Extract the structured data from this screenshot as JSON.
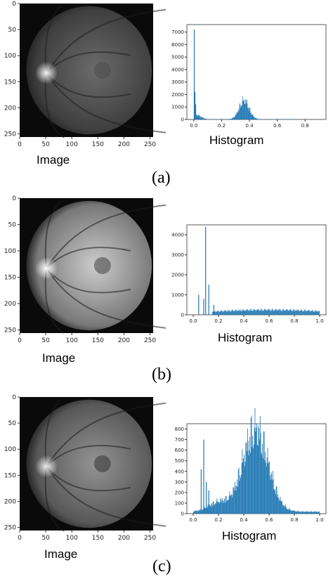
{
  "chart_data": [
    {
      "id": "a",
      "panel_label": "(a)",
      "image_caption": "Image",
      "histogram_caption": "Histogram",
      "image": {
        "type": "heatmap",
        "content": "fundus-grayscale-dark",
        "x_ticks": [
          "0",
          "50",
          "100",
          "150",
          "200",
          "250"
        ],
        "y_ticks": [
          "0",
          "50",
          "100",
          "150",
          "200",
          "250"
        ],
        "xlim": [
          0,
          256
        ],
        "ylim": [
          256,
          0
        ]
      },
      "histogram": {
        "type": "bar",
        "xlim": [
          -0.05,
          0.95
        ],
        "ylim": [
          0,
          7600
        ],
        "x_ticks": [
          "0.0",
          "0.2",
          "0.4",
          "0.6",
          "0.8"
        ],
        "x_tick_values": [
          0.0,
          0.2,
          0.4,
          0.6,
          0.8
        ],
        "y_ticks": [
          "0",
          "1000",
          "2000",
          "3000",
          "4000",
          "5000",
          "6000",
          "7000"
        ],
        "y_tick_values": [
          0,
          1000,
          2000,
          3000,
          4000,
          5000,
          6000,
          7000
        ],
        "spikes": [
          {
            "x": 0.0,
            "y": 7200
          },
          {
            "x": 0.005,
            "y": 2200
          },
          {
            "x": 0.01,
            "y": 1200
          }
        ],
        "bumps": [
          {
            "center": 0.36,
            "sigma": 0.035,
            "peak": 1550
          },
          {
            "center": 0.02,
            "sigma": 0.03,
            "peak": 350
          }
        ],
        "floor": 20,
        "range": [
          0.0,
          0.72
        ]
      },
      "image_brightness": {
        "fundus": 0.42,
        "disc": 0.95,
        "macula": 0.3
      }
    },
    {
      "id": "b",
      "panel_label": "(b)",
      "image_caption": "Image",
      "histogram_caption": "Histogram",
      "image": {
        "type": "heatmap",
        "content": "fundus-grayscale-bright",
        "x_ticks": [
          "0",
          "50",
          "100",
          "150",
          "200",
          "250"
        ],
        "y_ticks": [
          "0",
          "50",
          "100",
          "150",
          "200",
          "250"
        ],
        "xlim": [
          0,
          256
        ],
        "ylim": [
          256,
          0
        ]
      },
      "histogram": {
        "type": "bar",
        "xlim": [
          -0.05,
          1.05
        ],
        "ylim": [
          0,
          4500
        ],
        "x_ticks": [
          "0.0",
          "0.2",
          "0.4",
          "0.6",
          "0.8",
          "1.0"
        ],
        "x_tick_values": [
          0.0,
          0.2,
          0.4,
          0.6,
          0.8,
          1.0
        ],
        "y_ticks": [
          "0",
          "1000",
          "2000",
          "3000",
          "4000"
        ],
        "y_tick_values": [
          0,
          1000,
          2000,
          3000,
          4000
        ],
        "spikes": [
          {
            "x": 0.04,
            "y": 1000
          },
          {
            "x": 0.08,
            "y": 800
          },
          {
            "x": 0.095,
            "y": 4400
          },
          {
            "x": 0.12,
            "y": 1500
          },
          {
            "x": 0.16,
            "y": 500
          }
        ],
        "bumps": [
          {
            "center": 0.6,
            "sigma": 0.5,
            "peak": 260
          }
        ],
        "floor": 0,
        "range": [
          0.15,
          1.0
        ]
      },
      "image_brightness": {
        "fundus": 0.8,
        "disc": 1.0,
        "macula": 0.25
      }
    },
    {
      "id": "c",
      "panel_label": "(c)",
      "image_caption": "Image",
      "histogram_caption": "Histogram",
      "image": {
        "type": "heatmap",
        "content": "fundus-grayscale-medium",
        "x_ticks": [
          "0",
          "50",
          "100",
          "150",
          "200",
          "250"
        ],
        "y_ticks": [
          "0",
          "50",
          "100",
          "150",
          "200",
          "250"
        ],
        "xlim": [
          0,
          256
        ],
        "ylim": [
          256,
          0
        ]
      },
      "histogram": {
        "type": "bar",
        "xlim": [
          -0.05,
          1.05
        ],
        "ylim": [
          0,
          850
        ],
        "x_ticks": [
          "0.0",
          "0.2",
          "0.4",
          "0.6",
          "0.8",
          "1.0"
        ],
        "x_tick_values": [
          0.0,
          0.2,
          0.4,
          0.6,
          0.8,
          1.0
        ],
        "y_ticks": [
          "0",
          "100",
          "200",
          "300",
          "400",
          "500",
          "600",
          "700",
          "800"
        ],
        "y_tick_values": [
          0,
          100,
          200,
          300,
          400,
          500,
          600,
          700,
          800
        ],
        "spikes": [
          {
            "x": 0.06,
            "y": 420
          },
          {
            "x": 0.08,
            "y": 700
          },
          {
            "x": 0.1,
            "y": 300
          },
          {
            "x": 0.12,
            "y": 220
          }
        ],
        "bumps": [
          {
            "center": 0.49,
            "sigma": 0.1,
            "peak": 800
          },
          {
            "center": 0.2,
            "sigma": 0.08,
            "peak": 90
          }
        ],
        "floor": 20,
        "range": [
          0.0,
          1.0
        ]
      },
      "image_brightness": {
        "fundus": 0.58,
        "disc": 0.9,
        "macula": 0.2
      }
    }
  ],
  "colors": {
    "bar": "#1f77b4",
    "axis": "#333333",
    "background": "#ffffff"
  }
}
